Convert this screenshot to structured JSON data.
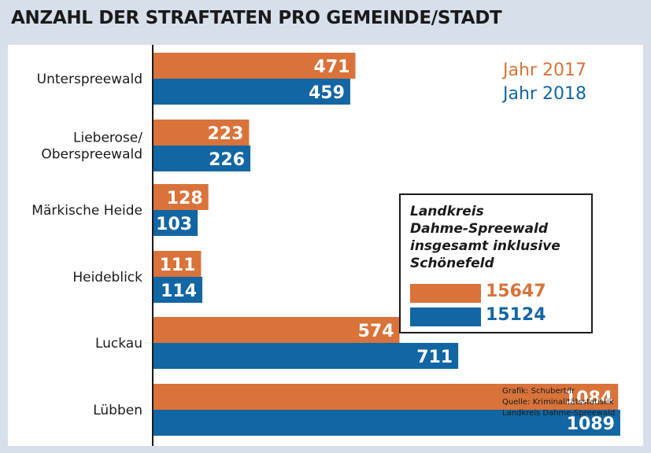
{
  "title": "ANZAHL DER STRAFTATEN PRO GEMEINDE/STADT",
  "colors": {
    "y2017": "#d9733a",
    "y2018": "#1266a3",
    "axis": "#1a1a1a"
  },
  "legend": {
    "y2017": "Jahr 2017",
    "y2018": "Jahr 2018"
  },
  "chart_data": {
    "type": "bar",
    "orientation": "horizontal",
    "title": "ANZAHL DER STRAFTATEN PRO GEMEINDE/STADT",
    "categories": [
      "Unterspreewald",
      "Lieberose/\nOberspreewald",
      "Märkische Heide",
      "Heideblick",
      "Luckau",
      "Lübben"
    ],
    "series": [
      {
        "name": "Jahr 2017",
        "values": [
          471,
          223,
          128,
          111,
          574,
          1084
        ]
      },
      {
        "name": "Jahr 2018",
        "values": [
          459,
          226,
          103,
          114,
          711,
          1089
        ]
      }
    ],
    "xlim": [
      0,
      1100
    ],
    "xlabel": "",
    "ylabel": "",
    "grid": false,
    "legend_position": "top-right"
  },
  "totals": {
    "heading": "Landkreis\nDahme-Spreewald\ninsgesamt inklusive\nSchönefeld",
    "y2017": "15647",
    "y2018": "15124"
  },
  "credits": [
    "Grafik: Schubert/lr",
    "Quelle: Kriminalitätsstatistik",
    "Landkreis Dahme-Spreewald"
  ]
}
